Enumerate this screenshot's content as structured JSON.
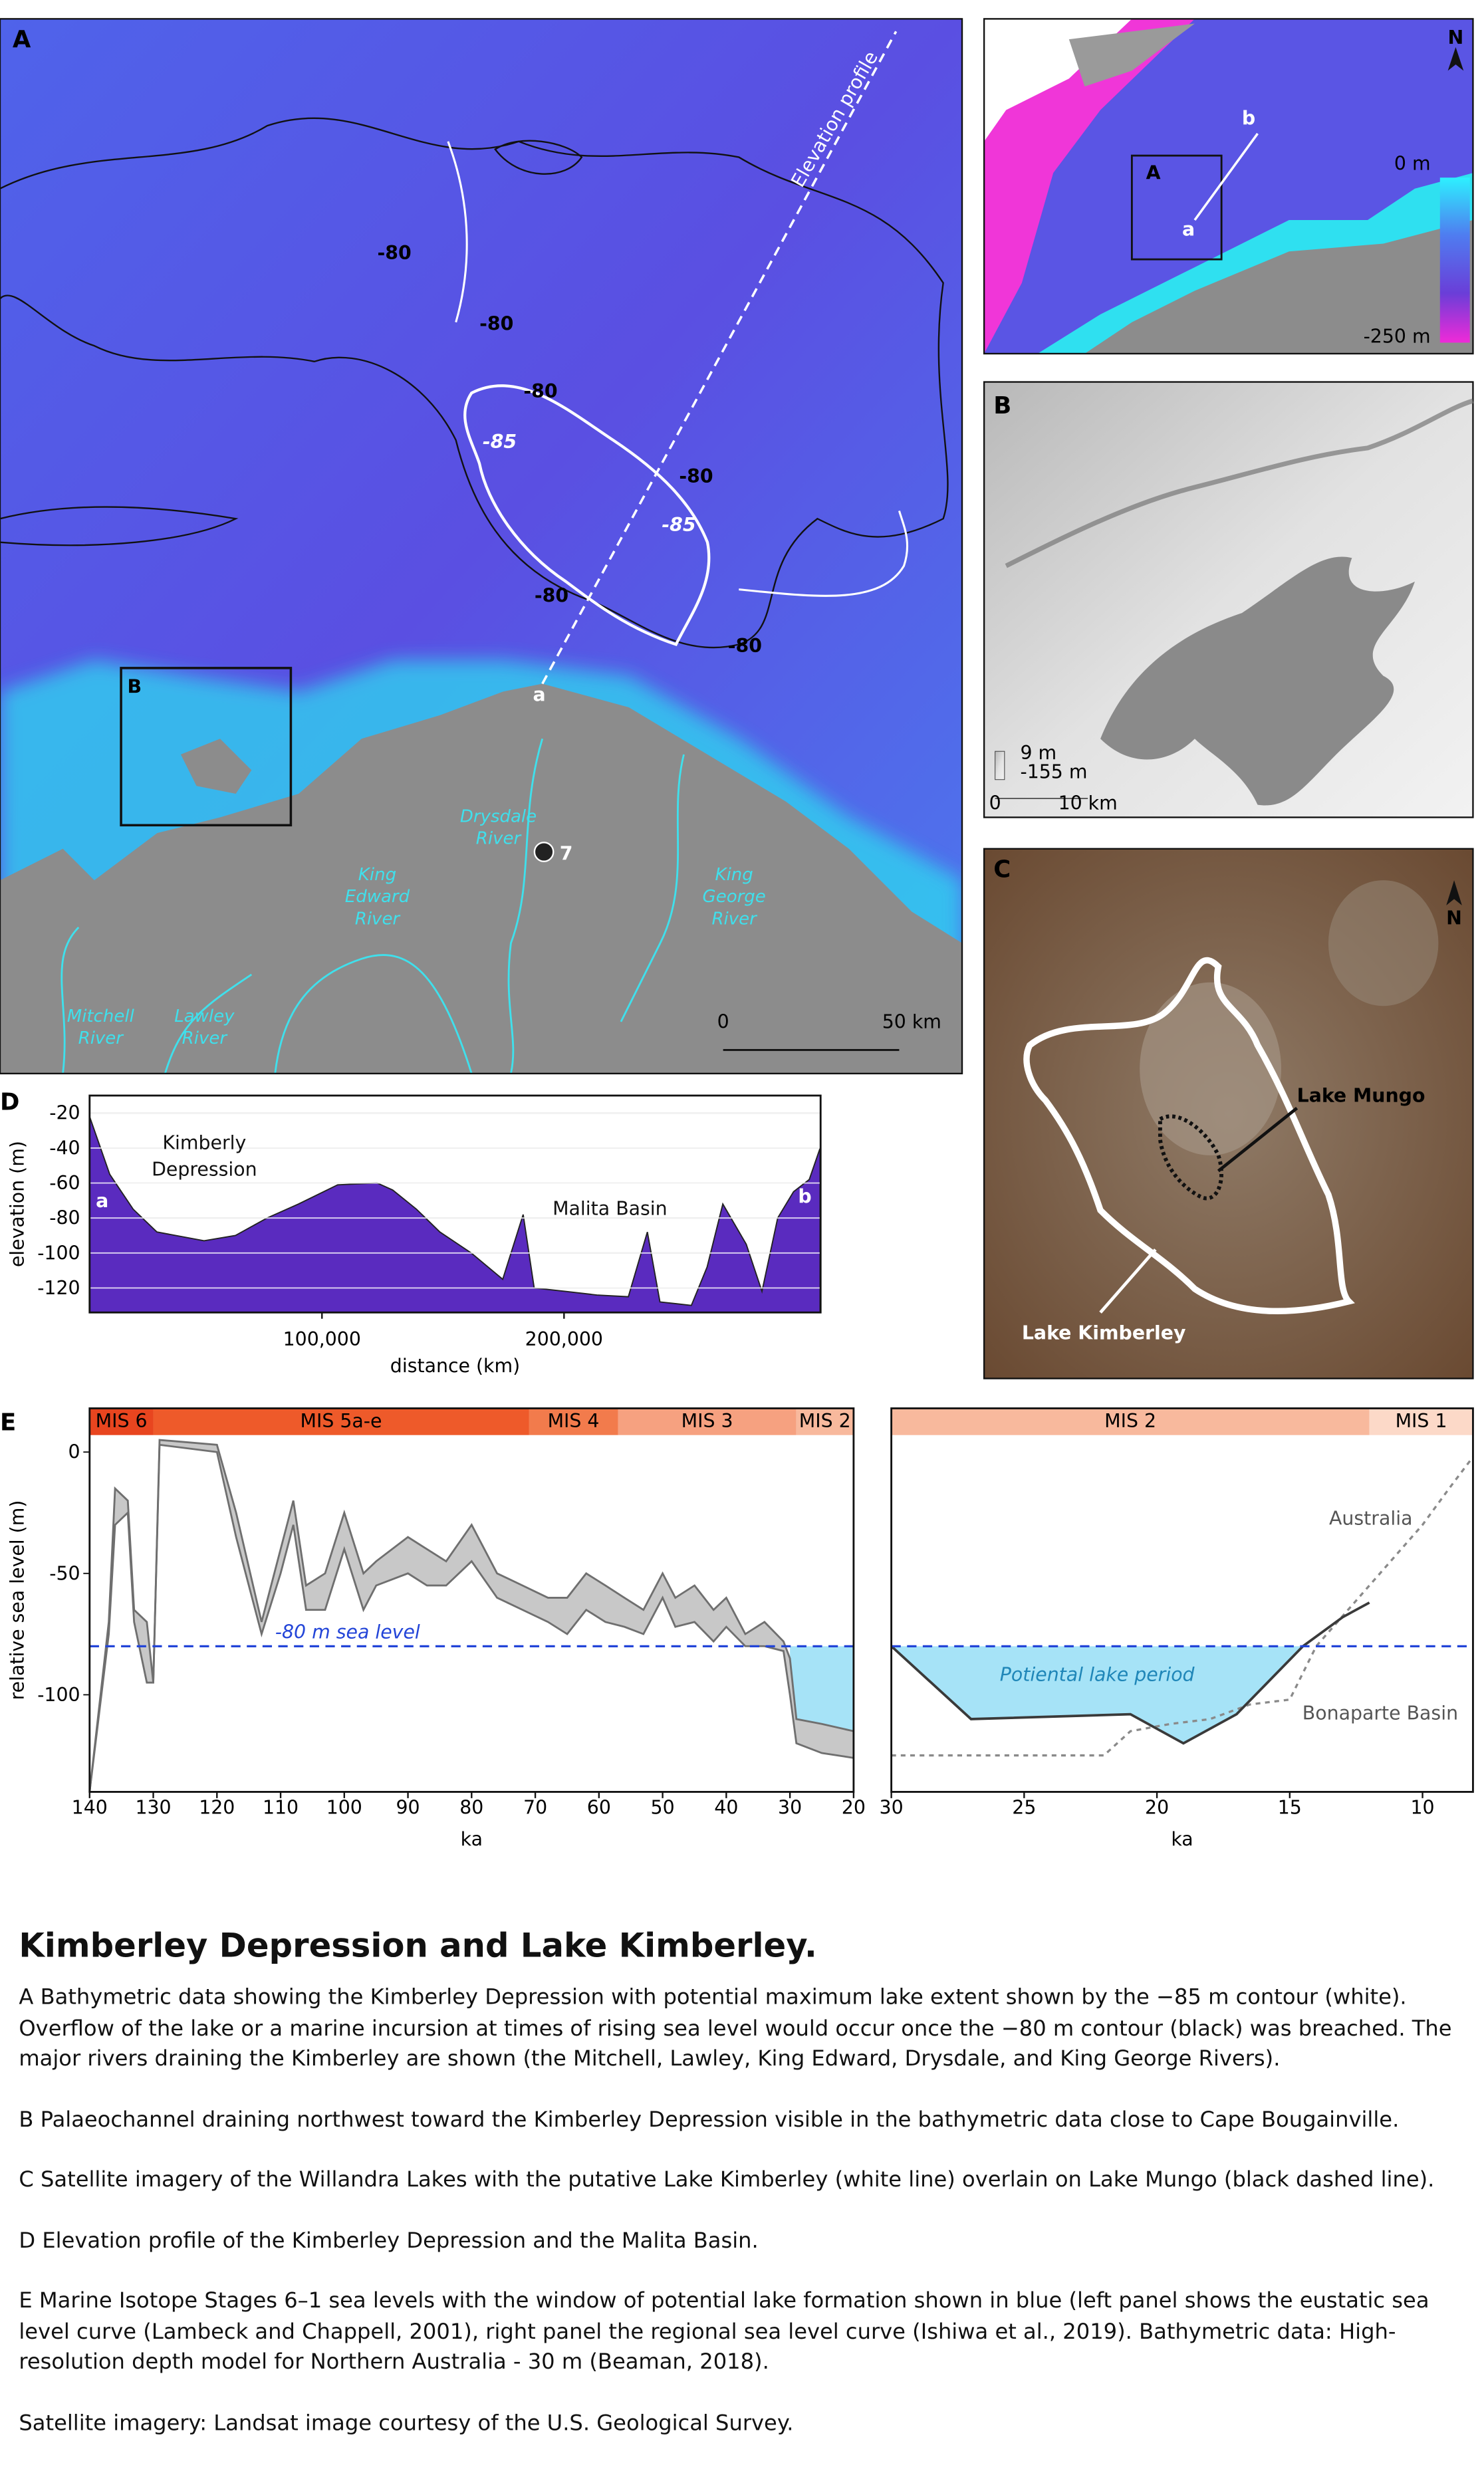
{
  "figure": {
    "panel_a": {
      "letter": "A",
      "profile_label": "Elevation profile",
      "contour_80": [
        "-80",
        "-80",
        "-80",
        "-80",
        "-80",
        "-80"
      ],
      "contour_85": [
        "-85",
        "-85"
      ],
      "profile_start": "a",
      "inset_box": "B",
      "site": "7",
      "rivers": [
        [
          "Drysdale",
          "River"
        ],
        [
          "King",
          "Edward",
          "River"
        ],
        [
          "King",
          "George",
          "River"
        ],
        [
          "Mitchell",
          "River"
        ],
        [
          "Lawley",
          "River"
        ]
      ],
      "scale": [
        "0",
        "50 km"
      ]
    },
    "inset": {
      "box": "A",
      "profile_start": "a",
      "profile_end": "b",
      "north": "N",
      "depth_top": "0 m",
      "depth_bottom": "-250 m"
    },
    "panel_b": {
      "letter": "B",
      "legend_top": "9 m",
      "legend_bottom": "-155 m",
      "scale": [
        "0",
        "10 km"
      ]
    },
    "panel_c": {
      "letter": "C",
      "north": "N",
      "lake_mungo": "Lake Mungo",
      "lake_kimberley": "Lake Kimberley"
    }
  },
  "chart_data": [
    {
      "type": "area",
      "panel": "D",
      "xlabel": "distance (km)",
      "ylabel": "elevation (m)",
      "color": "#5a2bbf",
      "annotations": [
        [
          "Kimberly",
          "Depression"
        ],
        [
          "Malita Basin"
        ],
        [
          "a"
        ],
        [
          "b"
        ]
      ],
      "x": [
        4000,
        12300,
        22000,
        31800,
        51300,
        64300,
        77300,
        90300,
        106500,
        122700,
        129200,
        139000,
        148700,
        161700,
        174700,
        183100,
        187700,
        200600,
        213600,
        226600,
        234400,
        239600,
        252600,
        259100,
        265600,
        275300,
        281800,
        288300,
        294800,
        301300,
        305800
      ],
      "values": [
        -22,
        -55,
        -75,
        -88,
        -93,
        -90,
        -80,
        -72,
        -61,
        -60,
        -64,
        -75,
        -88,
        -100,
        -115,
        -78,
        -120,
        -122,
        -124,
        -125,
        -88,
        -128,
        -130,
        -108,
        -72,
        -95,
        -122,
        -80,
        -65,
        -58,
        -40
      ],
      "xlim": [
        4000,
        306000
      ],
      "ylim": [
        -134,
        -10
      ],
      "xticks": [
        {
          "value": 100000,
          "label": "100,000"
        },
        {
          "value": 200000,
          "label": "200,000"
        }
      ],
      "yticks": [
        -20,
        -40,
        -60,
        -80,
        -100,
        -120
      ],
      "grid": true
    },
    {
      "type": "band",
      "panel": "E",
      "xlabel": "ka",
      "ylabel": "relative sea level (m)",
      "color": "#c8c8c8",
      "x": [
        140,
        137,
        136,
        134,
        133,
        131,
        130,
        129,
        120,
        117,
        113,
        110,
        108,
        106,
        103,
        100,
        97,
        95,
        90,
        87,
        84,
        80,
        76,
        72,
        68,
        65,
        62,
        59,
        56,
        53,
        50,
        48,
        45,
        42,
        40,
        37,
        34,
        31,
        30,
        29,
        25,
        20
      ],
      "series": [
        {
          "color": "#6f6f6f",
          "values": [
            -140,
            -70,
            -15,
            -20,
            -65,
            -70,
            -95,
            5,
            3,
            -25,
            -70,
            -40,
            -20,
            -55,
            -50,
            -25,
            -50,
            -45,
            -35,
            -40,
            -45,
            -30,
            -50,
            -55,
            -60,
            -60,
            -50,
            -55,
            -60,
            -65,
            -50,
            -60,
            -55,
            -65,
            -60,
            -75,
            -70,
            -78,
            -85,
            -110,
            -112,
            -115
          ]
        },
        {
          "color": "#6f6f6f",
          "values": [
            -140,
            -75,
            -30,
            -25,
            -70,
            -95,
            -95,
            3,
            0,
            -35,
            -75,
            -50,
            -30,
            -65,
            -65,
            -40,
            -65,
            -55,
            -50,
            -55,
            -55,
            -45,
            -60,
            -65,
            -70,
            -75,
            -65,
            -70,
            -72,
            -75,
            -60,
            -72,
            -70,
            -78,
            -72,
            -80,
            -80,
            -82,
            -100,
            -120,
            -124,
            -126
          ]
        }
      ],
      "reference_line": {
        "value": -80,
        "label": "-80 m sea level",
        "color": "#2345d8"
      },
      "highlight": {
        "xlim": [
          30,
          20
        ],
        "series": 0,
        "color": "#a6e3f7"
      },
      "stages": [
        {
          "label": "MIS 6",
          "start": 140,
          "end": 130,
          "color": "#e8451f"
        },
        {
          "label": "MIS 5a-e",
          "start": 130,
          "end": 71,
          "color": "#ee5a2a"
        },
        {
          "label": "MIS 4",
          "start": 71,
          "end": 57,
          "color": "#f27b4c"
        },
        {
          "label": "MIS 3",
          "start": 57,
          "end": 29,
          "color": "#f6a180"
        },
        {
          "label": "MIS 2",
          "start": 29,
          "end": 20,
          "color": "#f8b99d"
        }
      ],
      "xlim": [
        140,
        20
      ],
      "ylim": [
        -140,
        7
      ],
      "xticks": [
        140,
        130,
        120,
        110,
        100,
        90,
        80,
        70,
        60,
        50,
        40,
        30,
        20
      ],
      "yticks": [
        0,
        -50,
        -100
      ]
    },
    {
      "type": "line",
      "xlabel": "ka",
      "series": [
        {
          "name": "Australia",
          "color": "#8a8a8a",
          "dash": true,
          "x": [
            30,
            22,
            21,
            19.5,
            18,
            16.5,
            15,
            14,
            12,
            10,
            9,
            8.1
          ],
          "values": [
            -125,
            -125,
            -115,
            -112,
            -110,
            -104,
            -102,
            -80,
            -55,
            -30,
            -15,
            -2
          ]
        },
        {
          "name": "Bonaparte Basin",
          "color": "#3a3a3a",
          "dash": false,
          "x": [
            30,
            27,
            21,
            19,
            17,
            14.5,
            13,
            12
          ],
          "values": [
            -80,
            -110,
            -108,
            -120,
            -108,
            -80,
            -68,
            -62
          ]
        }
      ],
      "reference_line": {
        "value": -80,
        "color": "#2345d8"
      },
      "highlight": {
        "xlim": [
          30,
          14.5
        ],
        "series": 1,
        "color": "#a6e3f7",
        "label": "Potiental lake period"
      },
      "stages": [
        {
          "label": "MIS 2",
          "start": 30,
          "end": 12,
          "color": "#f8b99d"
        },
        {
          "label": "MIS 1",
          "start": 12,
          "end": 8.1,
          "color": "#fcd9c8"
        }
      ],
      "xlim": [
        30,
        8.1
      ],
      "ylim": [
        -140,
        7
      ],
      "xticks": [
        30,
        25,
        20,
        15,
        10
      ]
    }
  ],
  "caption": {
    "title": "Kimberley Depression and Lake Kimberley.",
    "paragraphs": [
      "A Bathymetric data showing the Kimberley Depression with potential maximum lake extent shown by the −85 m contour (white). Overflow of the lake or a marine incursion at times of rising sea level would occur once the −80 m contour (black) was breached. The major rivers draining the Kimberley are shown (the Mitchell, Lawley, King Edward, Drysdale, and King George Rivers).",
      "B Palaeochannel draining northwest toward the Kimberley Depression visible in the bathymetric data close to Cape Bougainville.",
      "C Satellite imagery of the Willandra Lakes with the putative Lake Kimberley (white line) overlain on Lake Mungo (black dashed line).",
      "D Elevation profile of the Kimberley Depression and the Malita Basin.",
      "E Marine Isotope Stages 6–1 sea levels with the window of potential lake formation shown in blue (left panel shows the eustatic sea level curve (Lambeck and Chappell, 2001), right panel the regional sea level curve (Ishiwa et al., 2019). Bathymetric data: High-resolution depth model for Northern Australia - 30 m (Beaman, 2018).",
      "Satellite imagery: Landsat image courtesy of the U.S. Geological Survey."
    ]
  }
}
